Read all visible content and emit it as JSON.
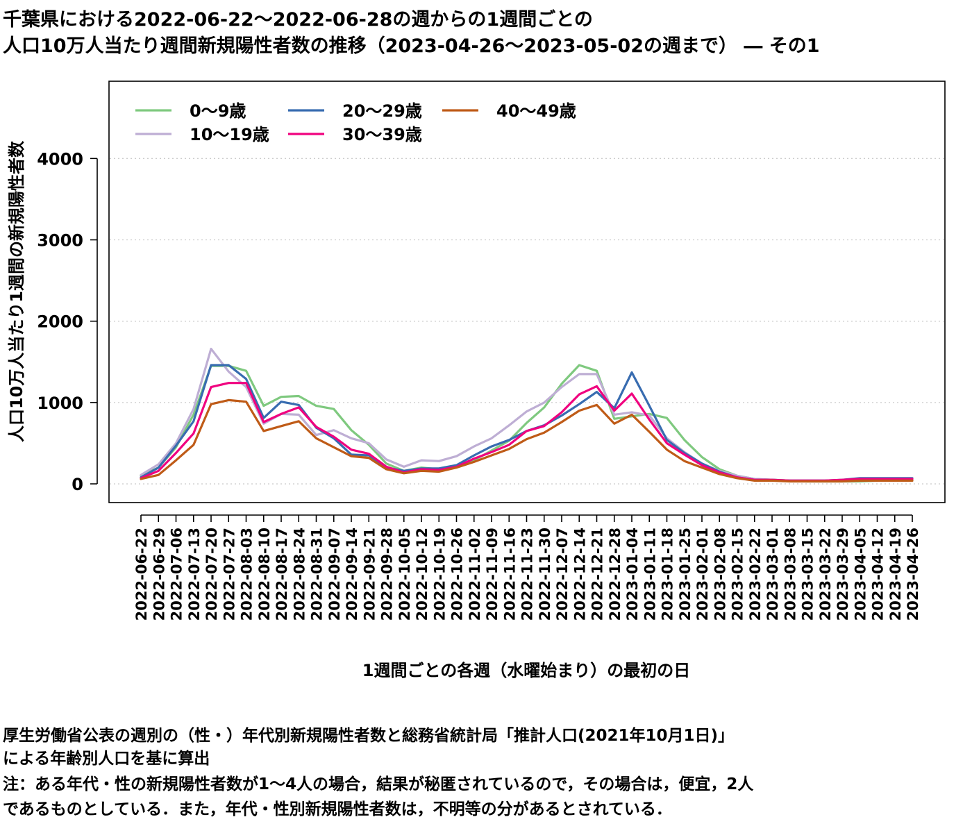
{
  "title_line1": "千葉県における2022-06-22～2022-06-28の週からの1週間ごとの",
  "title_line2": "人口10万人当たり週間新規陽性者数の推移（2023-04-26～2023-05-02の週まで） ― その1",
  "notes": {
    "line1": "厚生労働省公表の週別の（性・）年代別新規陽性者数と総務省統計局「推計人口(2021年10月1日)」",
    "line2": "による年齢別人口を基に算出",
    "line3": "注：ある年代・性の新規陽性者数が1～4人の場合，結果が秘匿されているので，その場合は，便宜，2人",
    "line4": "であるものとしている．また，年代・性別新規陽性者数は，不明等の分があるとされている．"
  },
  "chart_data": {
    "type": "line",
    "xlabel": "1週間ごとの各週（水曜始まり）の最初の日",
    "ylabel": "人口10万人当たり1週間の新規陽性者数",
    "ylim": [
      -230,
      4950
    ],
    "yticks": [
      0,
      1000,
      2000,
      3000,
      4000
    ],
    "grid": "horizontal dotted",
    "legend_position": "top-left",
    "categories": [
      "2022-06-22",
      "2022-06-29",
      "2022-07-06",
      "2022-07-13",
      "2022-07-20",
      "2022-07-27",
      "2022-08-03",
      "2022-08-10",
      "2022-08-17",
      "2022-08-24",
      "2022-08-31",
      "2022-09-07",
      "2022-09-14",
      "2022-09-21",
      "2022-09-28",
      "2022-10-05",
      "2022-10-12",
      "2022-10-19",
      "2022-10-26",
      "2022-11-02",
      "2022-11-09",
      "2022-11-16",
      "2022-11-23",
      "2022-11-30",
      "2022-12-07",
      "2022-12-14",
      "2022-12-21",
      "2022-12-28",
      "2023-01-04",
      "2023-01-11",
      "2023-01-18",
      "2023-01-25",
      "2023-02-01",
      "2023-02-08",
      "2023-02-15",
      "2023-02-22",
      "2023-03-01",
      "2023-03-08",
      "2023-03-15",
      "2023-03-22",
      "2023-03-29",
      "2023-04-05",
      "2023-04-12",
      "2023-04-19",
      "2023-04-26"
    ],
    "series": [
      {
        "name": "0～9歳",
        "color": "#7fc97f",
        "values": [
          100,
          200,
          450,
          850,
          1450,
          1450,
          1390,
          960,
          1070,
          1080,
          960,
          920,
          660,
          480,
          250,
          160,
          200,
          180,
          220,
          290,
          410,
          530,
          750,
          940,
          1230,
          1460,
          1390,
          800,
          830,
          860,
          810,
          540,
          330,
          180,
          100,
          60,
          50,
          40,
          30,
          30,
          30,
          30,
          40,
          40,
          40
        ]
      },
      {
        "name": "10～19歳",
        "color": "#beaed4",
        "values": [
          110,
          240,
          500,
          920,
          1660,
          1380,
          1190,
          740,
          860,
          850,
          600,
          660,
          560,
          500,
          300,
          210,
          290,
          280,
          340,
          460,
          560,
          720,
          890,
          1000,
          1190,
          1350,
          1350,
          850,
          880,
          840,
          560,
          390,
          250,
          160,
          100,
          60,
          50,
          40,
          40,
          40,
          40,
          50,
          50,
          60,
          60
        ]
      },
      {
        "name": "20～29歳",
        "color": "#386cb0",
        "values": [
          80,
          200,
          470,
          770,
          1460,
          1460,
          1290,
          810,
          1010,
          970,
          690,
          560,
          360,
          350,
          200,
          160,
          190,
          190,
          230,
          350,
          460,
          540,
          650,
          720,
          840,
          980,
          1130,
          930,
          1370,
          960,
          540,
          380,
          250,
          150,
          80,
          50,
          50,
          40,
          40,
          40,
          50,
          70,
          70,
          70,
          70
        ]
      },
      {
        "name": "30～39歳",
        "color": "#f0027f",
        "values": [
          70,
          160,
          380,
          620,
          1190,
          1240,
          1240,
          760,
          860,
          940,
          700,
          580,
          420,
          370,
          210,
          140,
          180,
          170,
          210,
          310,
          390,
          480,
          650,
          710,
          880,
          1100,
          1200,
          900,
          1110,
          790,
          500,
          360,
          230,
          140,
          80,
          50,
          50,
          40,
          40,
          40,
          50,
          60,
          60,
          60,
          60
        ]
      },
      {
        "name": "40～49歳",
        "color": "#bf5b17",
        "values": [
          60,
          110,
          290,
          480,
          980,
          1030,
          1010,
          650,
          710,
          770,
          560,
          450,
          340,
          320,
          180,
          130,
          160,
          150,
          200,
          270,
          350,
          430,
          550,
          630,
          760,
          900,
          970,
          740,
          850,
          640,
          420,
          280,
          200,
          120,
          70,
          40,
          40,
          30,
          30,
          30,
          30,
          40,
          40,
          40,
          40
        ]
      }
    ]
  }
}
